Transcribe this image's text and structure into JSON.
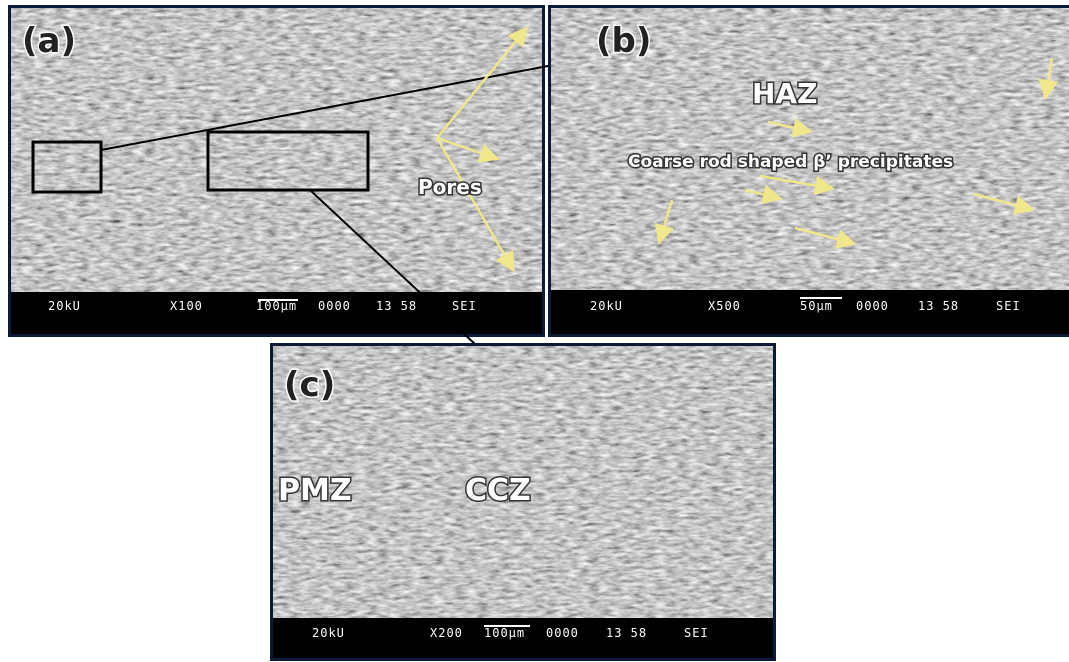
{
  "panels": [
    {
      "label": "(a)",
      "annotations": [
        "Pores"
      ],
      "info": [
        "20kU",
        "X100",
        "100µm",
        "0000",
        "13 58",
        "SEI"
      ]
    },
    {
      "label": "(b)",
      "annotations": [
        "HAZ",
        "Coarse rod shaped β’ precipitates"
      ],
      "info": [
        "20kU",
        "X500",
        "50µm",
        "0000",
        "13 58",
        "SEI"
      ]
    },
    {
      "label": "(c)",
      "annotations": [
        "PMZ",
        "CCZ"
      ],
      "info": [
        "20kU",
        "X200",
        "100µm",
        "0000",
        "13 58",
        "SEI"
      ]
    }
  ]
}
